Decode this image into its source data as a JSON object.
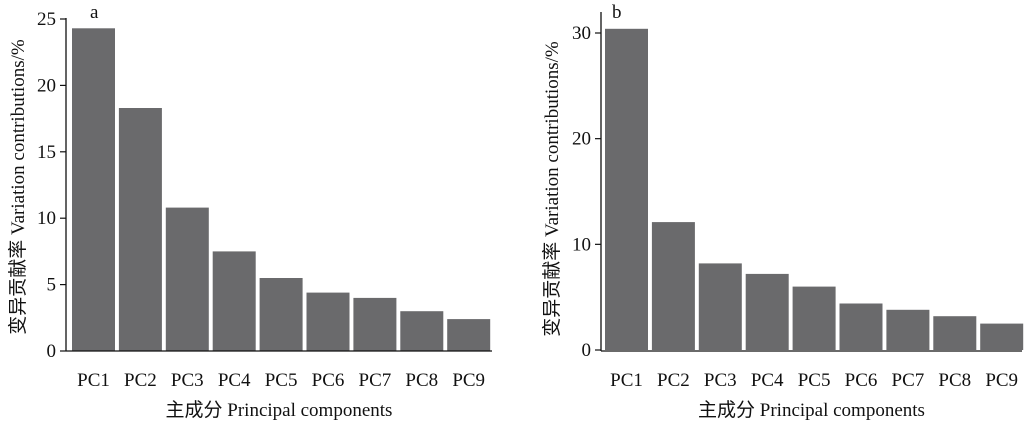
{
  "colors": {
    "bar": "#6a6a6c",
    "axis": "#111111"
  },
  "chart_data": [
    {
      "type": "bar",
      "panel_label": "a",
      "categories": [
        "PC1",
        "PC2",
        "PC3",
        "PC4",
        "PC5",
        "PC6",
        "PC7",
        "PC8",
        "PC9"
      ],
      "values": [
        24.3,
        18.3,
        10.8,
        7.5,
        5.5,
        4.4,
        4.0,
        3.0,
        2.4
      ],
      "xlabel": "主成分 Principal components",
      "ylabel": "变异贡献率 Variation contributions/%",
      "ylim": [
        0,
        25
      ],
      "yticks": [
        0,
        5,
        10,
        15,
        20,
        25
      ],
      "grid": false,
      "legend": "none"
    },
    {
      "type": "bar",
      "panel_label": "b",
      "categories": [
        "PC1",
        "PC2",
        "PC3",
        "PC4",
        "PC5",
        "PC6",
        "PC7",
        "PC8",
        "PC9"
      ],
      "values": [
        30.4,
        12.1,
        8.2,
        7.2,
        6.0,
        4.4,
        3.8,
        3.2,
        2.5
      ],
      "xlabel": "主成分 Principal components",
      "ylabel": "变异贡献率 Variation contributions/%",
      "ylim": [
        0,
        32
      ],
      "yticks": [
        0,
        10,
        20,
        30
      ],
      "grid": false,
      "legend": "none"
    }
  ]
}
